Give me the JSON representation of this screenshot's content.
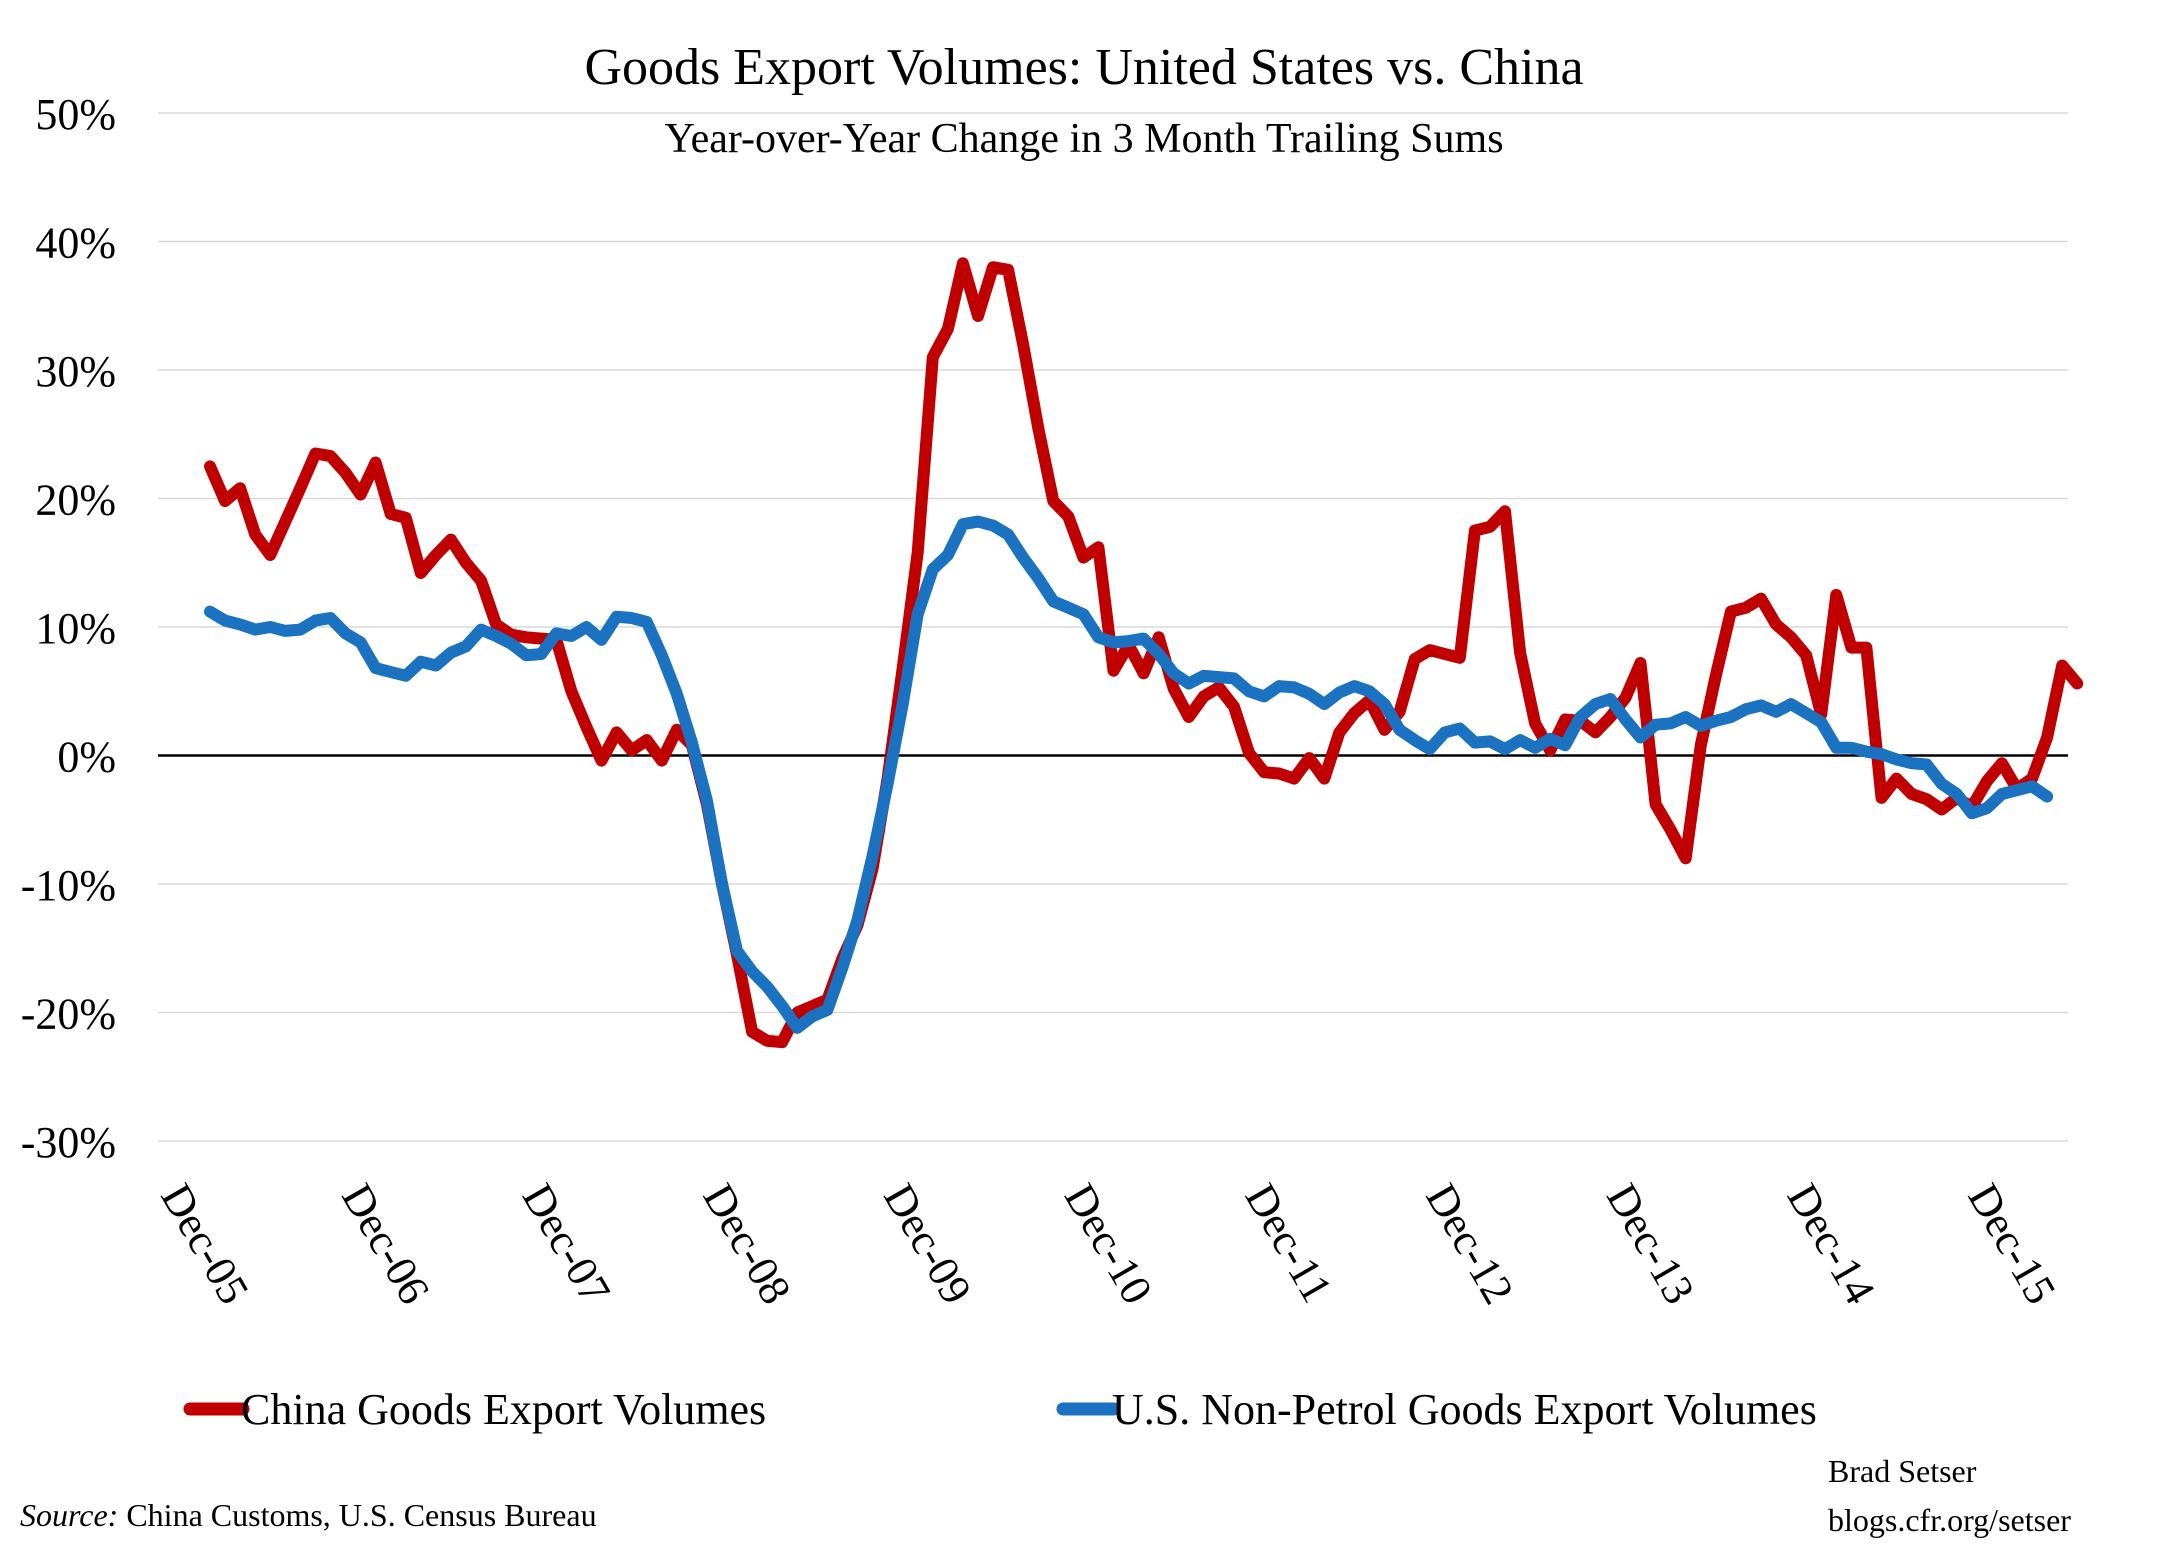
{
  "chart_data": {
    "type": "line",
    "title": "Goods Export Volumes: United States vs. China",
    "subtitle": "Year-over-Year Change in 3 Month Trailing Sums",
    "xlabel": "",
    "ylabel": "",
    "ylim": [
      -30,
      50
    ],
    "y_ticks": [
      "50%",
      "40%",
      "30%",
      "20%",
      "10%",
      "0%",
      "-10%",
      "-20%",
      "-30%"
    ],
    "y_tick_values": [
      50,
      40,
      30,
      20,
      10,
      0,
      -10,
      -20,
      -30
    ],
    "x_ticks": [
      "Dec-05",
      "Dec-06",
      "Dec-07",
      "Dec-08",
      "Dec-09",
      "Dec-10",
      "Dec-11",
      "Dec-12",
      "Dec-13",
      "Dec-14",
      "Dec-15"
    ],
    "x_tick_dates": [
      "2005-12",
      "2006-12",
      "2007-12",
      "2008-12",
      "2009-12",
      "2010-12",
      "2011-12",
      "2012-12",
      "2013-12",
      "2014-12",
      "2015-12"
    ],
    "x_start": "2005-12",
    "x_end": "2016-06",
    "grid": true,
    "legend_position": "bottom",
    "series": [
      {
        "name": "China Goods Export Volumes",
        "color": "#c00000",
        "values": [
          22.5,
          19.8,
          20.8,
          17.2,
          15.6,
          18.2,
          20.8,
          23.5,
          23.3,
          22.0,
          20.3,
          22.8,
          18.8,
          18.5,
          14.2,
          15.6,
          16.8,
          15.0,
          13.6,
          10.2,
          9.4,
          9.2,
          9.1,
          9.0,
          5.0,
          2.2,
          -0.4,
          1.8,
          0.4,
          1.2,
          -0.4,
          2.0,
          0.8,
          -3.8,
          -10.0,
          -15.5,
          -21.5,
          -22.2,
          -22.3,
          -20.0,
          -19.5,
          -19.0,
          -15.8,
          -13.2,
          -8.8,
          -1.8,
          6.8,
          15.8,
          31.0,
          33.2,
          38.3,
          34.2,
          38.0,
          37.8,
          32.0,
          25.5,
          19.8,
          18.6,
          15.4,
          16.2,
          6.6,
          8.6,
          6.4,
          9.2,
          5.2,
          3.0,
          4.6,
          5.3,
          3.8,
          0.2,
          -1.3,
          -1.4,
          -1.8,
          -0.2,
          -1.8,
          1.8,
          3.3,
          4.3,
          2.0,
          3.4,
          7.5,
          8.2,
          7.9,
          7.6,
          17.5,
          17.8,
          19.0,
          8.0,
          2.5,
          0.4,
          2.8,
          2.7,
          1.8,
          3.0,
          4.5,
          7.2,
          -3.8,
          -5.8,
          -8.0,
          0.8,
          6.2,
          11.2,
          11.5,
          12.2,
          10.2,
          9.2,
          7.8,
          3.2,
          12.5,
          8.4,
          8.4,
          -3.3,
          -1.8,
          -3.0,
          -3.4,
          -4.2,
          -3.3,
          -4.0,
          -2.0,
          -0.6,
          -2.6,
          -1.8,
          1.4,
          7.0,
          5.6
        ]
      },
      {
        "name": "U.S. Non-Petrol Goods Export Volumes",
        "color": "#1a72c0",
        "values": [
          11.2,
          10.5,
          10.2,
          9.8,
          10.0,
          9.7,
          9.8,
          10.5,
          10.7,
          9.5,
          8.8,
          6.8,
          6.5,
          6.2,
          7.3,
          7.0,
          8.0,
          8.5,
          9.8,
          9.3,
          8.7,
          7.8,
          7.9,
          9.5,
          9.3,
          10.0,
          9.0,
          10.8,
          10.7,
          10.4,
          7.8,
          4.8,
          1.0,
          -3.5,
          -10.0,
          -15.2,
          -16.8,
          -18.0,
          -19.5,
          -21.2,
          -20.3,
          -19.8,
          -16.5,
          -12.8,
          -7.8,
          -2.2,
          4.0,
          11.0,
          14.5,
          15.6,
          18.0,
          18.2,
          17.9,
          17.2,
          15.4,
          13.8,
          12.0,
          11.5,
          11.0,
          9.2,
          8.8,
          8.9,
          9.1,
          7.9,
          6.4,
          5.6,
          6.2,
          6.1,
          6.0,
          5.0,
          4.6,
          5.4,
          5.3,
          4.8,
          4.0,
          4.9,
          5.4,
          5.0,
          4.0,
          2.0,
          1.2,
          0.5,
          1.8,
          2.1,
          1.0,
          1.1,
          0.5,
          1.2,
          0.6,
          1.3,
          0.8,
          3.0,
          4.0,
          4.4,
          2.8,
          1.4,
          2.4,
          2.5,
          3.0,
          2.3,
          2.7,
          3.0,
          3.6,
          3.9,
          3.4,
          4.0,
          3.3,
          2.6,
          0.6,
          0.6,
          0.3,
          0.1,
          -0.3,
          -0.6,
          -0.7,
          -2.2,
          -3.0,
          -4.5,
          -4.1,
          -3.0,
          -2.7,
          -2.4,
          -3.2
        ]
      }
    ]
  },
  "credit": {
    "author": "Brad Setser",
    "url": "blogs.cfr.org/setser"
  },
  "source": {
    "label": "Source:",
    "text": "China Customs, U.S. Census Bureau"
  }
}
